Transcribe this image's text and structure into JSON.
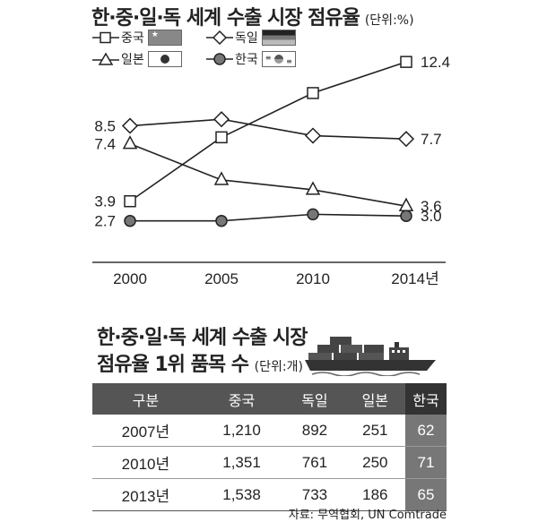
{
  "chart_title": "한·중·일·독 세계 수출 시장 점유율",
  "chart_unit": "(단위:%)",
  "chart_data": {
    "type": "line",
    "x": [
      "2000",
      "2005",
      "2010",
      "2014년"
    ],
    "series": [
      {
        "name": "중국",
        "marker": "square",
        "values": [
          3.9,
          null,
          null,
          12.4
        ],
        "estimated": [
          3.9,
          7.8,
          10.5,
          12.4
        ]
      },
      {
        "name": "독일",
        "marker": "diamond",
        "values": [
          8.5,
          null,
          null,
          7.7
        ],
        "estimated": [
          8.5,
          8.9,
          7.9,
          7.7
        ]
      },
      {
        "name": "일본",
        "marker": "triangle",
        "values": [
          7.4,
          null,
          null,
          3.6
        ],
        "estimated": [
          7.4,
          5.2,
          4.6,
          3.6
        ]
      },
      {
        "name": "한국",
        "marker": "circle",
        "values": [
          2.7,
          null,
          null,
          3.0
        ],
        "estimated": [
          2.7,
          2.7,
          3.1,
          3.0
        ]
      }
    ],
    "ylim": [
      1.7,
      12.9
    ],
    "grid": false,
    "legend_position": "top-left"
  },
  "table_title_line1": "한·중·일·독 세계 수출 시장",
  "table_title_line2": "점유율 1위 품목 수",
  "table_unit": "(단위:개)",
  "table": {
    "headers": [
      "구분",
      "중국",
      "독일",
      "일본",
      "한국"
    ],
    "rows": [
      [
        "2007년",
        "1,210",
        "892",
        "251",
        "62"
      ],
      [
        "2010년",
        "1,351",
        "761",
        "250",
        "71"
      ],
      [
        "2013년",
        "1,538",
        "733",
        "186",
        "65"
      ]
    ]
  },
  "source": "자료: 무역협회, UN Comtrade",
  "colors": {
    "line": "#222222",
    "korea_marker": "#777777",
    "header_bg": "#555555",
    "korea_col": "#777777"
  }
}
